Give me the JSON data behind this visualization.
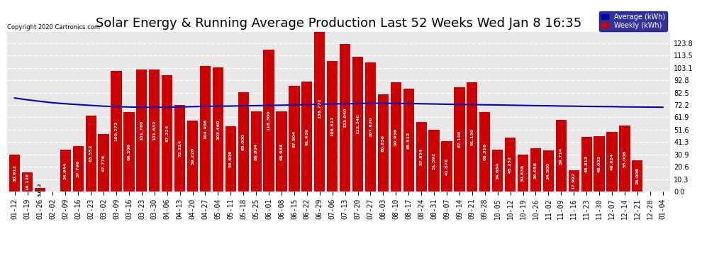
{
  "title": "Solar Energy & Running Average Production Last 52 Weeks Wed Jan 8 16:35",
  "copyright": "Copyright 2020 Cartronics.com",
  "categories": [
    "01-12",
    "01-19",
    "01-26",
    "02-02",
    "02-09",
    "02-16",
    "02-23",
    "03-02",
    "03-09",
    "03-16",
    "03-23",
    "03-30",
    "04-06",
    "04-13",
    "04-20",
    "04-27",
    "05-04",
    "05-11",
    "05-18",
    "05-25",
    "06-01",
    "06-08",
    "06-15",
    "06-22",
    "06-29",
    "07-06",
    "07-13",
    "07-20",
    "07-27",
    "08-03",
    "08-10",
    "08-17",
    "08-24",
    "08-31",
    "09-07",
    "09-14",
    "09-21",
    "09-28",
    "10-05",
    "10-12",
    "10-19",
    "10-26",
    "11-02",
    "11-09",
    "11-16",
    "11-23",
    "11-30",
    "12-07",
    "12-14",
    "12-21",
    "12-28",
    "01-04"
  ],
  "weekly_values": [
    30.912,
    16.128,
    3.012,
    0.0,
    34.944,
    37.796,
    63.552,
    47.776,
    100.272,
    66.208,
    101.78,
    101.632,
    97.224,
    72.224,
    59.22,
    104.908,
    103.46,
    54.608,
    83.0,
    66.804,
    118.3,
    66.948,
    87.904,
    91.42,
    138.772,
    108.612,
    123.04,
    112.24,
    107.62,
    80.856,
    90.936,
    85.512,
    57.824,
    51.592,
    41.876,
    87.14,
    91.15,
    66.316,
    34.684,
    45.252,
    30.836,
    36.056,
    34.5,
    59.714,
    17.992,
    45.812,
    46.032,
    49.624,
    55.008,
    26.008,
    0.0,
    0.0
  ],
  "average_values": [
    78.0,
    76.5,
    75.2,
    74.0,
    73.2,
    72.5,
    71.8,
    71.2,
    70.8,
    70.5,
    70.3,
    70.2,
    70.3,
    70.5,
    70.8,
    71.0,
    71.2,
    71.3,
    71.5,
    71.6,
    71.8,
    72.0,
    72.2,
    72.5,
    72.8,
    73.0,
    73.2,
    73.4,
    73.6,
    73.6,
    73.5,
    73.4,
    73.2,
    73.0,
    72.8,
    72.6,
    72.5,
    72.3,
    72.2,
    72.0,
    71.8,
    71.6,
    71.5,
    71.3,
    71.2,
    71.0,
    70.9,
    70.8,
    70.6,
    70.5,
    70.4,
    70.3
  ],
  "bar_color": "#cc0000",
  "line_color": "#0000cc",
  "background_color": "#ffffff",
  "plot_bg_color": "#e8e8e8",
  "grid_color": "#ffffff",
  "ylim": [
    0.0,
    133.1
  ],
  "yticks": [
    0.0,
    10.3,
    20.6,
    30.9,
    41.3,
    51.6,
    61.9,
    72.2,
    82.5,
    92.8,
    103.1,
    113.5,
    123.8
  ],
  "title_fontsize": 13,
  "tick_fontsize": 7,
  "legend_avg_color": "#0000aa",
  "legend_weekly_color": "#cc0000"
}
